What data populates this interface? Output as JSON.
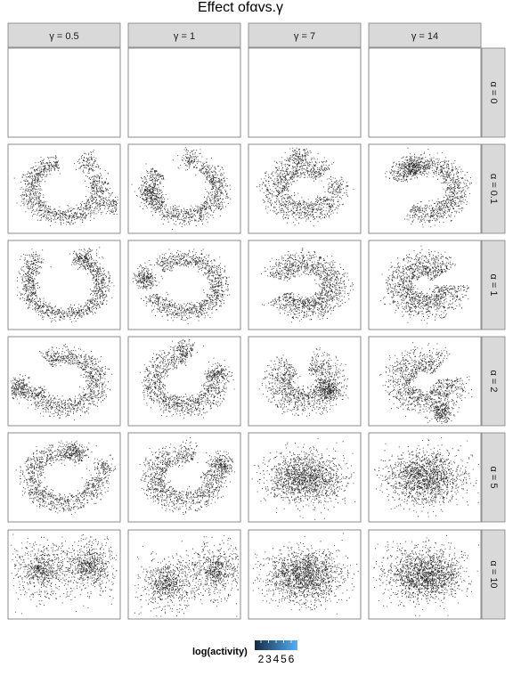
{
  "chart_data": {
    "type": "scatter",
    "title": "Effect ofαvs.γ",
    "xlabel": "",
    "ylabel": "",
    "axes_visible": false,
    "grid": false,
    "point_color": "#000000",
    "columns": [
      "γ = 0.5",
      "γ = 1",
      "γ = 7",
      "γ = 14"
    ],
    "rows": [
      "α = 0",
      "α = 0.1",
      "α = 1",
      "α = 2",
      "α = 5",
      "α = 10"
    ],
    "panels": [
      [
        {
          "points": 0
        },
        {
          "points": 0
        },
        {
          "points": 0
        },
        {
          "points": 0
        }
      ],
      [
        {
          "shape": "ring",
          "points": 1300,
          "gap_deg": 70,
          "gap_at_deg": 65,
          "rotation": 0.4,
          "blobs": [
            [
              0.72,
              0.22
            ],
            [
              0.93,
              0.68
            ]
          ]
        },
        {
          "shape": "ring",
          "points": 1300,
          "gap_deg": 80,
          "gap_at_deg": 100,
          "rotation": 0.4,
          "blobs": [
            [
              0.55,
              0.16
            ],
            [
              0.18,
              0.55
            ]
          ]
        },
        {
          "shape": "ring",
          "points": 1300,
          "gap_deg": 70,
          "gap_at_deg": 10,
          "rotation": 0.6,
          "blobs": [
            [
              0.45,
              0.12
            ],
            [
              0.78,
              0.48
            ]
          ]
        },
        {
          "shape": "ring",
          "points": 1300,
          "gap_deg": 80,
          "gap_at_deg": 200,
          "rotation": 0.5,
          "blobs": [
            [
              0.38,
              0.25
            ]
          ]
        }
      ],
      [
        {
          "shape": "ring",
          "points": 1300,
          "gap_deg": 70,
          "gap_at_deg": 110,
          "rotation": 0.3,
          "blobs": [
            [
              0.22,
              0.25
            ],
            [
              0.68,
              0.2
            ]
          ]
        },
        {
          "shape": "ring",
          "points": 1300,
          "gap_deg": 60,
          "gap_at_deg": 170,
          "rotation": 0.4,
          "blobs": [
            [
              0.15,
              0.42
            ]
          ]
        },
        {
          "shape": "ring",
          "points": 1300,
          "gap_deg": 45,
          "gap_at_deg": 185,
          "rotation": 0.6,
          "blobs": []
        },
        {
          "shape": "ring",
          "points": 1300,
          "gap_deg": 40,
          "gap_at_deg": 20,
          "rotation": 0.7,
          "blobs": []
        }
      ],
      [
        {
          "shape": "ring",
          "points": 1300,
          "gap_deg": 70,
          "gap_at_deg": 160,
          "rotation": 0.45,
          "blobs": [
            [
              0.1,
              0.58
            ]
          ]
        },
        {
          "shape": "ring",
          "points": 1300,
          "gap_deg": 60,
          "gap_at_deg": 55,
          "rotation": 0.5,
          "blobs": [
            [
              0.5,
              0.12
            ],
            [
              0.8,
              0.4
            ]
          ]
        },
        {
          "shape": "ring",
          "points": 1300,
          "gap_deg": 45,
          "gap_at_deg": 100,
          "rotation": 0.7,
          "blobs": [
            [
              0.7,
              0.6
            ]
          ]
        },
        {
          "shape": "ring",
          "points": 1300,
          "gap_deg": 40,
          "gap_at_deg": 30,
          "rotation": 0.7,
          "blobs": [
            [
              0.65,
              0.85
            ]
          ]
        }
      ],
      [
        {
          "shape": "ring",
          "points": 1300,
          "gap_deg": 50,
          "gap_at_deg": 25,
          "rotation": 0.45,
          "blobs": [
            [
              0.58,
              0.2
            ],
            [
              0.85,
              0.4
            ]
          ]
        },
        {
          "shape": "ring",
          "points": 1300,
          "gap_deg": 50,
          "gap_at_deg": 45,
          "rotation": 0.55,
          "blobs": [
            [
              0.82,
              0.35
            ]
          ]
        },
        {
          "shape": "cloud",
          "points": 1500,
          "blobs": []
        },
        {
          "shape": "cloud",
          "points": 1500,
          "blobs": []
        }
      ],
      [
        {
          "shape": "lobes",
          "points": 1400,
          "blobs": [
            [
              0.3,
              0.45
            ],
            [
              0.72,
              0.4
            ]
          ]
        },
        {
          "shape": "lobes",
          "points": 1400,
          "blobs": [
            [
              0.35,
              0.6
            ],
            [
              0.78,
              0.45
            ]
          ]
        },
        {
          "shape": "cloud",
          "points": 1600,
          "blobs": []
        },
        {
          "shape": "cloud",
          "points": 1600,
          "blobs": []
        }
      ]
    ],
    "legend": {
      "title": "log(activity)",
      "position": "bottom",
      "ticks": [
        "2",
        "3",
        "4",
        "5",
        "6"
      ],
      "color_low": "#132b43",
      "color_high": "#56b1f7"
    }
  },
  "colors": {
    "strip_fill": "#d9d9d9",
    "strip_border": "#7f7f7f",
    "panel_border": "#7f7f7f",
    "background": "#ffffff"
  }
}
